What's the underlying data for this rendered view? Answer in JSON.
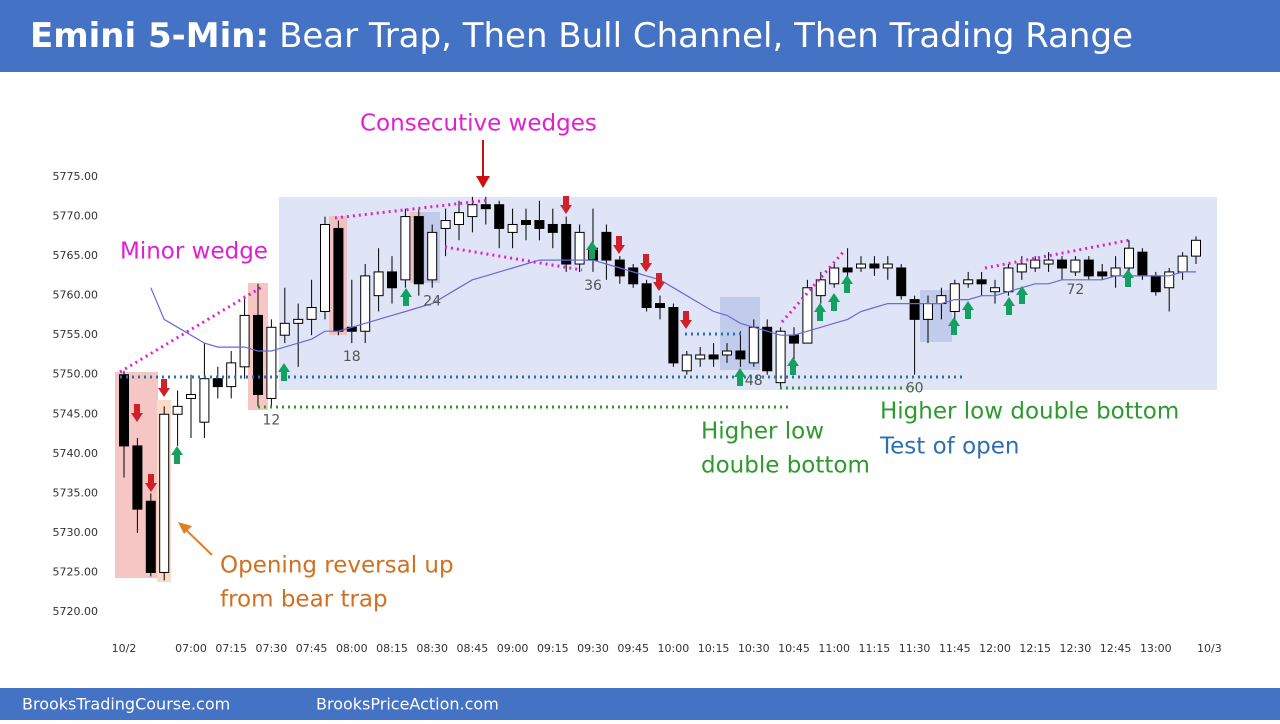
{
  "chart_data": {
    "type": "candlestick",
    "title": "Emini 5-Min:",
    "subtitle": "Bear Trap, Then Bull Channel, Then Trading Range",
    "footer_left": "BrooksTradingCourse.com",
    "footer_right": "BrooksPriceAction.com",
    "up_color": "#ffffff",
    "down_color": "#000000",
    "candles": {
      "open": [
        5750,
        5741,
        5734,
        5725,
        5745,
        5747,
        5744,
        5749.5,
        5748.5,
        5751,
        5757.5,
        5747,
        5755,
        5756.5,
        5757,
        5758,
        5768.5,
        5756,
        5755.5,
        5760,
        5763,
        5762,
        5770,
        5762,
        5768.5,
        5769,
        5770,
        5771.5,
        5771.5,
        5768,
        5769.5,
        5769.5,
        5769,
        5769,
        5764,
        5766,
        5768,
        5764.5,
        5763.5,
        5761.5,
        5759,
        5758.5,
        5750.5,
        5752,
        5752.5,
        5752.5,
        5753,
        5751.5,
        5756,
        5749,
        5755,
        5754,
        5760,
        5761.5,
        5763.5,
        5763.5,
        5764,
        5763.5,
        5763.5,
        5759.5,
        5757,
        5759,
        5758,
        5761.5,
        5762,
        5760.5,
        5760.5,
        5763,
        5763.5,
        5764,
        5764.5,
        5763,
        5764.5,
        5763,
        5762.5,
        5763.5,
        5765.5,
        5762.5,
        5761,
        5763,
        5765
      ],
      "high": [
        5750.5,
        5742,
        5735,
        5746,
        5748,
        5750,
        5754,
        5751,
        5753,
        5760,
        5761.5,
        5757,
        5761,
        5759,
        5762,
        5770,
        5769.5,
        5762,
        5764,
        5766,
        5765,
        5771,
        5771,
        5769,
        5771,
        5772,
        5772.5,
        5772.5,
        5772,
        5771,
        5771,
        5772,
        5771,
        5770,
        5769,
        5771,
        5769,
        5765,
        5764,
        5762,
        5760,
        5759,
        5753,
        5753.5,
        5754,
        5754,
        5755.5,
        5757,
        5757,
        5756,
        5756,
        5762,
        5763,
        5764,
        5766,
        5765,
        5765,
        5765,
        5764,
        5760,
        5760,
        5761,
        5762,
        5763,
        5763,
        5762,
        5764,
        5765,
        5765,
        5765.5,
        5765,
        5765,
        5765,
        5764,
        5765,
        5767,
        5766,
        5763,
        5763.5,
        5765.5,
        5767.5
      ],
      "low": [
        5737,
        5730,
        5724.5,
        5724,
        5741,
        5742,
        5742,
        5747,
        5747,
        5749.5,
        5746,
        5746,
        5754,
        5751,
        5755,
        5757,
        5755,
        5754,
        5754,
        5758,
        5759,
        5761,
        5760,
        5761,
        5765,
        5767,
        5768,
        5769,
        5766,
        5766,
        5767,
        5767,
        5766,
        5763,
        5763,
        5763,
        5762,
        5761.5,
        5761,
        5758,
        5757,
        5751,
        5750,
        5751,
        5751,
        5751.5,
        5751,
        5751,
        5750,
        5748.5,
        5752,
        5754,
        5759,
        5761,
        5762,
        5763,
        5762.5,
        5762,
        5759.5,
        5750,
        5754,
        5757,
        5756,
        5761,
        5760,
        5759,
        5760,
        5762,
        5763,
        5763,
        5762,
        5762.5,
        5762,
        5762,
        5761,
        5763,
        5762,
        5760,
        5758,
        5762,
        5764
      ],
      "close": [
        5741,
        5733,
        5725,
        5745,
        5746,
        5747.5,
        5749.5,
        5748.5,
        5751.5,
        5757.5,
        5747.5,
        5756,
        5756.5,
        5757,
        5758.5,
        5769,
        5755.5,
        5755.5,
        5762.5,
        5763,
        5761,
        5770,
        5761.5,
        5768,
        5769.5,
        5770.5,
        5771.5,
        5771,
        5768.5,
        5769,
        5769,
        5768.5,
        5768,
        5764,
        5768,
        5764.5,
        5764.5,
        5762.5,
        5761.5,
        5758.5,
        5758.5,
        5751.5,
        5752.5,
        5752.5,
        5752,
        5753,
        5752,
        5756,
        5750.5,
        5755.5,
        5754,
        5761,
        5762,
        5763.5,
        5763,
        5764,
        5763.5,
        5764,
        5760,
        5757,
        5759,
        5760,
        5761.5,
        5762,
        5761.5,
        5761,
        5763.5,
        5764,
        5764.5,
        5764.5,
        5763.5,
        5764.5,
        5762.5,
        5762.5,
        5763.5,
        5766,
        5762.5,
        5760.5,
        5763,
        5765,
        5767
      ]
    },
    "ema": {
      "color": "#6a6ad8",
      "values": [
        null,
        null,
        5761,
        5757,
        5756,
        5755,
        5754,
        5753.5,
        5753.5,
        5753.5,
        5753,
        5753,
        5753.5,
        5754,
        5754.5,
        5755.5,
        5755.5,
        5756,
        5756.5,
        5757,
        5757.5,
        5758,
        5758.5,
        5759,
        5760,
        5761,
        5762,
        5762.5,
        5763,
        5763.5,
        5764,
        5764.5,
        5764.5,
        5764.5,
        5764.5,
        5764.5,
        5764,
        5763.5,
        5763,
        5762.5,
        5762,
        5761,
        5760,
        5759,
        5758,
        5757.5,
        5756.5,
        5756,
        5755.5,
        5755,
        5755,
        5755.5,
        5756,
        5756.5,
        5757,
        5758,
        5758.5,
        5759,
        5759,
        5759,
        5759,
        5759,
        5759.5,
        5759.5,
        5760,
        5760,
        5760.5,
        5761,
        5761.5,
        5761.5,
        5762,
        5762,
        5762,
        5762,
        5762.5,
        5762.5,
        5762.5,
        5762.5,
        5762.5,
        5763,
        5763
      ]
    },
    "bar_numbers": [
      12,
      18,
      24,
      36,
      48,
      60,
      72
    ],
    "xlim": [
      0,
      83
    ],
    "xticks": [
      {
        "value": 1,
        "label": "10/2"
      },
      {
        "value": 6,
        "label": "07:00"
      },
      {
        "value": 9,
        "label": "07:15"
      },
      {
        "value": 12,
        "label": "07:30"
      },
      {
        "value": 15,
        "label": "07:45"
      },
      {
        "value": 18,
        "label": "08:00"
      },
      {
        "value": 21,
        "label": "08:15"
      },
      {
        "value": 24,
        "label": "08:30"
      },
      {
        "value": 27,
        "label": "08:45"
      },
      {
        "value": 30,
        "label": "09:00"
      },
      {
        "value": 33,
        "label": "09:15"
      },
      {
        "value": 36,
        "label": "09:30"
      },
      {
        "value": 39,
        "label": "09:45"
      },
      {
        "value": 42,
        "label": "10:00"
      },
      {
        "value": 45,
        "label": "10:15"
      },
      {
        "value": 48,
        "label": "10:30"
      },
      {
        "value": 51,
        "label": "10:45"
      },
      {
        "value": 54,
        "label": "11:00"
      },
      {
        "value": 57,
        "label": "11:15"
      },
      {
        "value": 60,
        "label": "11:30"
      },
      {
        "value": 63,
        "label": "11:45"
      },
      {
        "value": 66,
        "label": "12:00"
      },
      {
        "value": 69,
        "label": "12:15"
      },
      {
        "value": 72,
        "label": "12:30"
      },
      {
        "value": 75,
        "label": "12:45"
      },
      {
        "value": 78,
        "label": "13:00"
      },
      {
        "value": 82,
        "label": "10/3"
      }
    ],
    "ylim": [
      5718,
      5779
    ],
    "yticks": [
      {
        "value": 5720,
        "label": "5720.00"
      },
      {
        "value": 5725,
        "label": "5725.00"
      },
      {
        "value": 5730,
        "label": "5730.00"
      },
      {
        "value": 5735,
        "label": "5735.00"
      },
      {
        "value": 5740,
        "label": "5740.00"
      },
      {
        "value": 5745,
        "label": "5745.00"
      },
      {
        "value": 5750,
        "label": "5750.00"
      },
      {
        "value": 5755,
        "label": "5755.00"
      },
      {
        "value": 5760,
        "label": "5760.00"
      },
      {
        "value": 5765,
        "label": "5765.00"
      },
      {
        "value": 5770,
        "label": "5770.00"
      },
      {
        "value": 5775,
        "label": "5775.00"
      }
    ],
    "annotations": {
      "consecutive_wedges": "Consecutive wedges",
      "minor_wedge": "Minor wedge",
      "opening_reversal_1": "Opening reversal up",
      "opening_reversal_2": "from bear trap",
      "higher_low_1": "Higher low",
      "higher_low_2": "double bottom",
      "higher_low_db": "Higher low double bottom",
      "test_of_open": "Test of open"
    }
  }
}
